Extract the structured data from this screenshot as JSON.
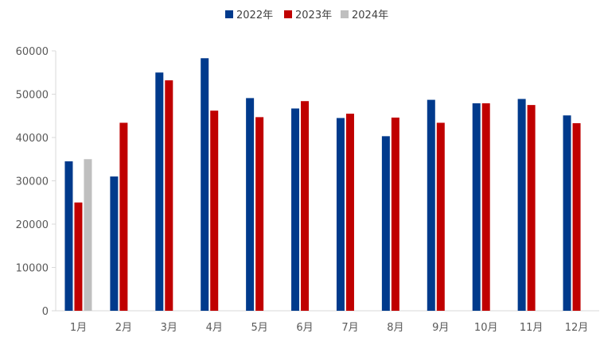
{
  "chart_data": {
    "type": "bar",
    "categories": [
      "1月",
      "2月",
      "3月",
      "4月",
      "5月",
      "6月",
      "7月",
      "8月",
      "9月",
      "10月",
      "11月",
      "12月"
    ],
    "series": [
      {
        "name": "2022年",
        "color": "#003A8C",
        "values": [
          34500,
          31000,
          55000,
          58300,
          49100,
          46700,
          44500,
          40300,
          48700,
          47900,
          48900,
          45100
        ]
      },
      {
        "name": "2023年",
        "color": "#C00000",
        "values": [
          25000,
          43400,
          53200,
          46200,
          44700,
          48400,
          45500,
          44600,
          43400,
          47900,
          47500,
          43300
        ]
      },
      {
        "name": "2024年",
        "color": "#BFBFBF",
        "values": [
          35000,
          null,
          null,
          null,
          null,
          null,
          null,
          null,
          null,
          null,
          null,
          null
        ]
      }
    ],
    "yticks": [
      "0",
      "10000",
      "20000",
      "30000",
      "40000",
      "50000",
      "60000"
    ],
    "ylim": [
      0,
      60000
    ],
    "grid": false,
    "legend_position": "top-center",
    "title": "",
    "xlabel": "",
    "ylabel": ""
  }
}
